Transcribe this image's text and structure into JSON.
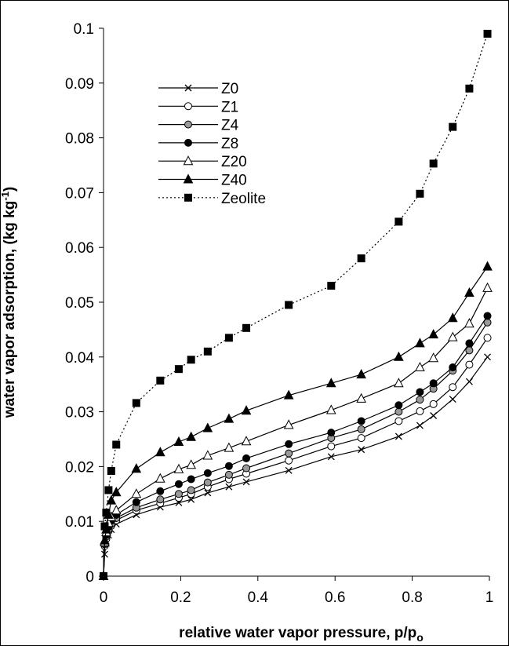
{
  "chart_data": {
    "type": "line",
    "xlabel": "relative water vapor pressure, p/p",
    "xlabel_sub": "o",
    "ylabel": "water vapor adsorption, (kg kg",
    "ylabel_sup": "-1",
    "ylabel_end": ")",
    "xlim": [
      0,
      1
    ],
    "ylim": [
      0,
      0.1
    ],
    "x_ticks": [
      "0",
      "0.2",
      "0.4",
      "0.6",
      "0.8",
      "1"
    ],
    "y_ticks": [
      "0",
      "0.01",
      "0.02",
      "0.03",
      "0.04",
      "0.05",
      "0.06",
      "0.07",
      "0.08",
      "0.09",
      "0.1"
    ],
    "grid": false,
    "legend_position": "top-left",
    "series": [
      {
        "name": "Z0",
        "marker": "x",
        "line": "solid",
        "x": [
          0,
          0.003,
          0.007,
          0.013,
          0.02,
          0.033,
          0.085,
          0.147,
          0.195,
          0.227,
          0.27,
          0.325,
          0.37,
          0.48,
          0.59,
          0.668,
          0.765,
          0.82,
          0.855,
          0.905,
          0.948,
          0.995
        ],
        "y": [
          0,
          0.004,
          0.006,
          0.0075,
          0.0085,
          0.0095,
          0.0112,
          0.0126,
          0.0134,
          0.014,
          0.0152,
          0.0163,
          0.0172,
          0.0193,
          0.0218,
          0.0231,
          0.0255,
          0.0275,
          0.0293,
          0.0323,
          0.0355,
          0.04
        ]
      },
      {
        "name": "Z1",
        "marker": "open-circle",
        "line": "solid",
        "x": [
          0,
          0.003,
          0.007,
          0.013,
          0.02,
          0.033,
          0.085,
          0.147,
          0.195,
          0.227,
          0.27,
          0.325,
          0.37,
          0.48,
          0.59,
          0.668,
          0.765,
          0.82,
          0.855,
          0.905,
          0.948,
          0.995
        ],
        "y": [
          0,
          0.0055,
          0.0068,
          0.0082,
          0.0092,
          0.0102,
          0.012,
          0.0133,
          0.0143,
          0.015,
          0.0163,
          0.0177,
          0.0187,
          0.0211,
          0.0237,
          0.0252,
          0.0283,
          0.0301,
          0.0314,
          0.0345,
          0.0386,
          0.0435
        ]
      },
      {
        "name": "Z4",
        "marker": "gray-circle",
        "line": "solid",
        "x": [
          0,
          0.003,
          0.007,
          0.013,
          0.02,
          0.033,
          0.085,
          0.147,
          0.195,
          0.227,
          0.27,
          0.325,
          0.37,
          0.48,
          0.59,
          0.668,
          0.765,
          0.82,
          0.855,
          0.905,
          0.948,
          0.995
        ],
        "y": [
          0,
          0.0058,
          0.0072,
          0.0085,
          0.0095,
          0.0106,
          0.0125,
          0.014,
          0.015,
          0.0157,
          0.0171,
          0.0185,
          0.0197,
          0.0224,
          0.0252,
          0.0268,
          0.03,
          0.0322,
          0.0342,
          0.0375,
          0.0412,
          0.0463
        ]
      },
      {
        "name": "Z8",
        "marker": "filled-circle",
        "line": "solid",
        "x": [
          0,
          0.003,
          0.007,
          0.013,
          0.02,
          0.033,
          0.085,
          0.147,
          0.195,
          0.227,
          0.27,
          0.325,
          0.37,
          0.48,
          0.59,
          0.668,
          0.765,
          0.82,
          0.855,
          0.905,
          0.948,
          0.995
        ],
        "y": [
          0,
          0.006,
          0.0075,
          0.009,
          0.0101,
          0.0112,
          0.0135,
          0.0155,
          0.0168,
          0.0177,
          0.0188,
          0.0201,
          0.0215,
          0.0241,
          0.0262,
          0.0283,
          0.0312,
          0.0336,
          0.0352,
          0.0381,
          0.0425,
          0.0475
        ]
      },
      {
        "name": "Z20",
        "marker": "open-triangle",
        "line": "solid",
        "x": [
          0,
          0.003,
          0.007,
          0.013,
          0.02,
          0.033,
          0.085,
          0.147,
          0.195,
          0.227,
          0.27,
          0.325,
          0.37,
          0.48,
          0.59,
          0.668,
          0.765,
          0.82,
          0.855,
          0.905,
          0.948,
          0.995
        ],
        "y": [
          0,
          0.0062,
          0.008,
          0.0097,
          0.0108,
          0.012,
          0.015,
          0.0178,
          0.0195,
          0.0203,
          0.022,
          0.0234,
          0.0246,
          0.0276,
          0.0303,
          0.0324,
          0.0352,
          0.0381,
          0.0398,
          0.0436,
          0.0461,
          0.0526
        ]
      },
      {
        "name": "Z40",
        "marker": "filled-triangle",
        "line": "solid",
        "x": [
          0,
          0.003,
          0.007,
          0.013,
          0.02,
          0.033,
          0.085,
          0.147,
          0.195,
          0.227,
          0.27,
          0.325,
          0.37,
          0.48,
          0.59,
          0.668,
          0.765,
          0.82,
          0.855,
          0.905,
          0.948,
          0.995
        ],
        "y": [
          0,
          0.0065,
          0.0085,
          0.0112,
          0.0138,
          0.0153,
          0.0196,
          0.0226,
          0.0245,
          0.0254,
          0.027,
          0.0287,
          0.0302,
          0.033,
          0.0352,
          0.0368,
          0.04,
          0.0425,
          0.0441,
          0.0471,
          0.0517,
          0.0565
        ]
      },
      {
        "name": "Zeolite",
        "marker": "filled-square",
        "line": "dotted",
        "x": [
          0,
          0.003,
          0.007,
          0.013,
          0.02,
          0.033,
          0.085,
          0.147,
          0.195,
          0.227,
          0.27,
          0.325,
          0.37,
          0.48,
          0.59,
          0.668,
          0.765,
          0.82,
          0.855,
          0.905,
          0.948,
          0.995
        ],
        "y": [
          0,
          0.0091,
          0.0116,
          0.0157,
          0.0192,
          0.024,
          0.0316,
          0.0357,
          0.0378,
          0.0395,
          0.041,
          0.0435,
          0.0453,
          0.0495,
          0.053,
          0.058,
          0.0647,
          0.0698,
          0.0753,
          0.082,
          0.089,
          0.099
        ]
      }
    ]
  }
}
